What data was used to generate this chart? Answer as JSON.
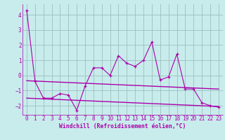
{
  "xlabel": "Windchill (Refroidissement éolien,°C)",
  "bg_color": "#c8ecec",
  "grid_color": "#9bbfbf",
  "line_color": "#aa00aa",
  "marker": "+",
  "xlim": [
    -0.5,
    23.5
  ],
  "ylim": [
    -2.6,
    4.7
  ],
  "yticks": [
    -2,
    -1,
    0,
    1,
    2,
    3,
    4
  ],
  "xticks": [
    0,
    1,
    2,
    3,
    4,
    5,
    6,
    7,
    8,
    9,
    10,
    11,
    12,
    13,
    14,
    15,
    16,
    17,
    18,
    19,
    20,
    21,
    22,
    23
  ],
  "series1_x": [
    0,
    1,
    2,
    3,
    4,
    5,
    6,
    7,
    8,
    9,
    10,
    11,
    12,
    13,
    14,
    15,
    16,
    17,
    18,
    19,
    20,
    21,
    22,
    23
  ],
  "series1_y": [
    4.3,
    -0.4,
    -1.5,
    -1.5,
    -1.2,
    -1.3,
    -2.3,
    -0.7,
    0.5,
    0.5,
    0.0,
    1.3,
    0.8,
    0.6,
    1.0,
    2.2,
    -0.3,
    -0.1,
    1.4,
    -0.9,
    -0.9,
    -1.8,
    -2.0,
    -2.1
  ],
  "series2_x": [
    0,
    23
  ],
  "series2_y": [
    -0.35,
    -0.9
  ],
  "series3_x": [
    0,
    23
  ],
  "series3_y": [
    -1.5,
    -2.05
  ],
  "tick_fontsize": 5.5,
  "xlabel_fontsize": 5.8
}
